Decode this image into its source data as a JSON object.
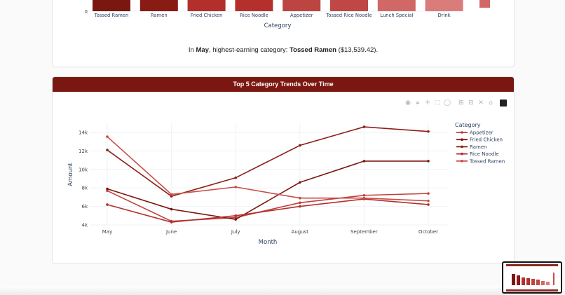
{
  "bar_section": {
    "x_title": "Category",
    "zero_tick": "0",
    "categories": [
      "Tossed Ramen",
      "Ramen",
      "Fried Chicken",
      "Rice Noodle",
      "Appetizer",
      "Tossed Rice Noodle",
      "Lunch Special",
      "Drink"
    ],
    "bar_colors": [
      "#7b1711",
      "#891b15",
      "#b22f2b",
      "#b5302c",
      "#bd4541",
      "#bf4744",
      "#d16866",
      "#da7c7a"
    ],
    "summary": {
      "prefix": "In ",
      "month": "May",
      "middle": ", highest-earning category: ",
      "category": "Tossed Ramen",
      "value": " ($13,539.42)."
    }
  },
  "trend_card": {
    "title": "Top 5 Category Trends Over Time",
    "modebar": [
      "camera-icon",
      "zoom-icon",
      "pan-icon",
      "box-select-icon",
      "lasso-icon",
      "zoom-in-icon",
      "zoom-out-icon",
      "autoscale-icon",
      "reset-axes-icon",
      "plotly-logo-icon"
    ]
  },
  "chart_data": {
    "type": "line",
    "title": "Top 5 Category Trends Over Time",
    "xlabel": "Month",
    "ylabel": "Amount",
    "x": [
      "May",
      "June",
      "July",
      "August",
      "September",
      "October"
    ],
    "y_ticks": [
      "4k",
      "6k",
      "8k",
      "10k",
      "12k",
      "14k"
    ],
    "ylim": [
      3800,
      15000
    ],
    "legend_title": "Category",
    "legend_position": "right",
    "grid": true,
    "series": [
      {
        "name": "Appetizer",
        "color": "#c0403c",
        "values": [
          7700,
          4400,
          4800,
          6400,
          7200,
          7400
        ]
      },
      {
        "name": "Fried Chicken",
        "color": "#7b1711",
        "values": [
          7900,
          5700,
          4600,
          8600,
          10900,
          10900
        ]
      },
      {
        "name": "Ramen",
        "color": "#8e1f18",
        "values": [
          12100,
          7100,
          9100,
          12600,
          14600,
          14100
        ]
      },
      {
        "name": "Rice Noodle",
        "color": "#b3302b",
        "values": [
          6200,
          4300,
          5000,
          6000,
          6800,
          6200
        ]
      },
      {
        "name": "Tossed Ramen",
        "color": "#c94d49",
        "values": [
          13539,
          7300,
          8100,
          6900,
          6900,
          6600
        ]
      }
    ]
  }
}
